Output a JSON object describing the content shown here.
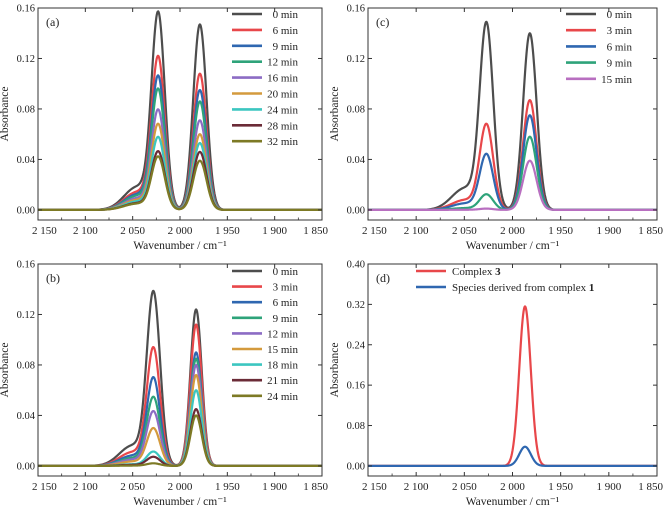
{
  "chart_data": [
    {
      "type": "line",
      "panel_label": "(a)",
      "xlabel": "Wavenumber / cm⁻¹",
      "ylabel": "Absorbance",
      "xlim": [
        2150,
        1850
      ],
      "ylim": [
        -0.008,
        0.16
      ],
      "x_ticks": [
        2150,
        2100,
        2050,
        2000,
        1950,
        1900,
        1850
      ],
      "x_tick_labels": [
        "2 150",
        "2 100",
        "2 050",
        "2 000",
        "1 950",
        "1 900",
        "1 850"
      ],
      "y_ticks": [
        0,
        0.04,
        0.08,
        0.12,
        0.16
      ],
      "y_tick_labels": [
        "0.00",
        "0.04",
        "0.08",
        "0.12",
        "0.16"
      ],
      "peak_positions": [
        2023,
        1979
      ],
      "peak_widths": [
        7,
        7
      ],
      "series": [
        {
          "name": "0 min",
          "color": "#4d4d4d",
          "peaks": [
            0.152,
            0.147
          ]
        },
        {
          "name": "6 min",
          "color": "#e8474a",
          "peaks": [
            0.118,
            0.108
          ]
        },
        {
          "name": "9 min",
          "color": "#2f67b0",
          "peaks": [
            0.103,
            0.095
          ]
        },
        {
          "name": "12 min",
          "color": "#2ea37a",
          "peaks": [
            0.093,
            0.086
          ]
        },
        {
          "name": "16 min",
          "color": "#8c6cc4",
          "peaks": [
            0.077,
            0.071
          ]
        },
        {
          "name": "20 min",
          "color": "#d49a3d",
          "peaks": [
            0.066,
            0.06
          ]
        },
        {
          "name": "24 min",
          "color": "#3cc6c0",
          "peaks": [
            0.056,
            0.053
          ]
        },
        {
          "name": "28 min",
          "color": "#6b2b37",
          "peaks": [
            0.045,
            0.046
          ]
        },
        {
          "name": "32 min",
          "color": "#7d7a25",
          "peaks": [
            0.041,
            0.039
          ]
        }
      ]
    },
    {
      "type": "line",
      "panel_label": "(c)",
      "xlabel": "Wavenumber / cm⁻¹",
      "ylabel": "Absorbance",
      "xlim": [
        2150,
        1850
      ],
      "ylim": [
        -0.008,
        0.16
      ],
      "x_ticks": [
        2150,
        2100,
        2050,
        2000,
        1950,
        1900,
        1850
      ],
      "x_tick_labels": [
        "2 150",
        "2 100",
        "2 050",
        "2 000",
        "1 950",
        "1 900",
        "1 850"
      ],
      "y_ticks": [
        0,
        0.04,
        0.08,
        0.12,
        0.16
      ],
      "y_tick_labels": [
        "0.00",
        "0.04",
        "0.08",
        "0.12",
        "0.16"
      ],
      "peak_positions": [
        2027,
        1982
      ],
      "peak_widths": [
        7,
        7
      ],
      "series": [
        {
          "name": "0 min",
          "color": "#4d4d4d",
          "peaks": [
            0.144,
            0.14
          ]
        },
        {
          "name": "3 min",
          "color": "#e8474a",
          "peaks": [
            0.066,
            0.087
          ]
        },
        {
          "name": "6 min",
          "color": "#2f67b0",
          "peaks": [
            0.043,
            0.075
          ]
        },
        {
          "name": "9 min",
          "color": "#2ea37a",
          "peaks": [
            0.012,
            0.058
          ]
        },
        {
          "name": "15 min",
          "color": "#b86fc0",
          "peaks": [
            0.001,
            0.039
          ]
        }
      ]
    },
    {
      "type": "line",
      "panel_label": "(b)",
      "xlabel": "Wavenumber / cm⁻¹",
      "ylabel": "Absorbance",
      "xlim": [
        2150,
        1850
      ],
      "ylim": [
        -0.008,
        0.16
      ],
      "x_ticks": [
        2150,
        2100,
        2050,
        2000,
        1950,
        1900,
        1850
      ],
      "x_tick_labels": [
        "2 150",
        "2 100",
        "2 050",
        "2 000",
        "1 950",
        "1 900",
        "1 850"
      ],
      "y_ticks": [
        0,
        0.04,
        0.08,
        0.12,
        0.16
      ],
      "y_tick_labels": [
        "0.00",
        "0.04",
        "0.08",
        "0.12",
        "0.16"
      ],
      "peak_positions": [
        2028,
        1983
      ],
      "peak_widths": [
        7,
        6
      ],
      "series": [
        {
          "name": "0 min",
          "color": "#4d4d4d",
          "peaks": [
            0.134,
            0.124
          ]
        },
        {
          "name": "3 min",
          "color": "#e8474a",
          "peaks": [
            0.091,
            0.112
          ]
        },
        {
          "name": "6 min",
          "color": "#2f67b0",
          "peaks": [
            0.068,
            0.09
          ]
        },
        {
          "name": "9 min",
          "color": "#2ea37a",
          "peaks": [
            0.053,
            0.085
          ]
        },
        {
          "name": "12 min",
          "color": "#8c6cc4",
          "peaks": [
            0.042,
            0.08
          ]
        },
        {
          "name": "15 min",
          "color": "#d49a3d",
          "peaks": [
            0.029,
            0.072
          ]
        },
        {
          "name": "18 min",
          "color": "#3cc6c0",
          "peaks": [
            0.011,
            0.06
          ]
        },
        {
          "name": "21 min",
          "color": "#6b2b37",
          "peaks": [
            0.007,
            0.045
          ]
        },
        {
          "name": "24 min",
          "color": "#7d7a25",
          "peaks": [
            0.002,
            0.04
          ]
        }
      ]
    },
    {
      "type": "line",
      "panel_label": "(d)",
      "xlabel": "Wavenumber / cm⁻¹",
      "ylabel": "Absorbance",
      "xlim": [
        2150,
        1850
      ],
      "ylim": [
        -0.02,
        0.4
      ],
      "x_ticks": [
        2150,
        2100,
        2050,
        2000,
        1950,
        1900,
        1850
      ],
      "x_tick_labels": [
        "2 150",
        "2 100",
        "2 050",
        "2 000",
        "1 950",
        "1 900",
        "1 850"
      ],
      "y_ticks": [
        0,
        0.08,
        0.16,
        0.24,
        0.32,
        0.4
      ],
      "y_tick_labels": [
        "0.00",
        "0.08",
        "0.16",
        "0.24",
        "0.32",
        "0.40"
      ],
      "peak_positions": [
        1987
      ],
      "peak_widths": [
        6
      ],
      "series": [
        {
          "name": "Complex 3",
          "name_plain": "Complex ",
          "name_bold": "3",
          "color": "#e8474a",
          "peaks": [
            0.316
          ]
        },
        {
          "name": "Species derived from complex 1",
          "name_plain": "Species derived from complex ",
          "name_bold": "1",
          "color": "#2f67b0",
          "peaks": [
            0.038
          ]
        }
      ]
    }
  ]
}
